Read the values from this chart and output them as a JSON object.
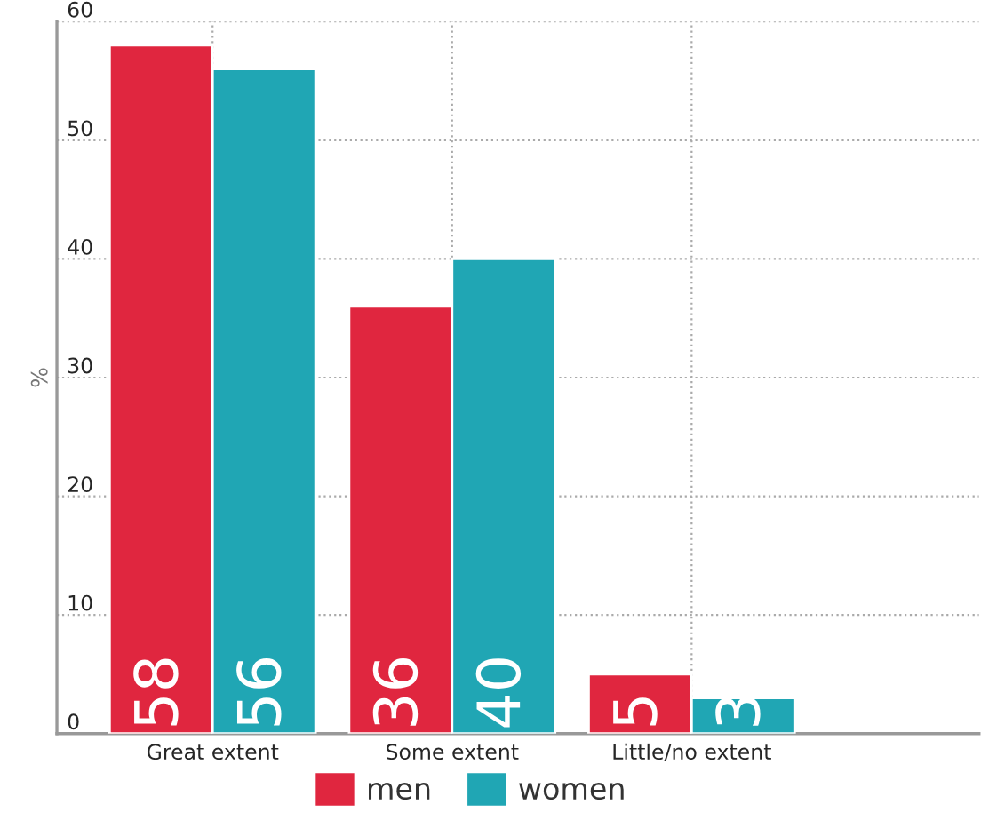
{
  "chart_data": {
    "type": "bar",
    "ylabel": "%",
    "categories": [
      "Great extent",
      "Some extent",
      "Little/no extent"
    ],
    "series": [
      {
        "name": "men",
        "color": "#e0263f",
        "values": [
          58,
          36,
          5
        ]
      },
      {
        "name": "women",
        "color": "#20a6b4",
        "values": [
          56,
          40,
          3
        ]
      }
    ],
    "ylim": [
      0,
      60
    ],
    "yticks": [
      0,
      10,
      20,
      30,
      40,
      50,
      60
    ],
    "grid": true,
    "legend": "bottom",
    "data_labels": true
  }
}
